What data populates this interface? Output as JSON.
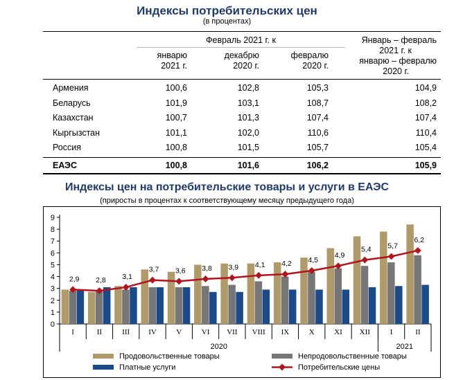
{
  "table": {
    "title": "Индексы потребительских цен",
    "subtitle": "(в процентах)",
    "group_header": "Февраль 2021 г. к",
    "columns": [
      {
        "line1": "январю",
        "line2": "2021 г."
      },
      {
        "line1": "декабрю",
        "line2": "2020 г."
      },
      {
        "line1": "февралю",
        "line2": "2020 г."
      }
    ],
    "last_column": [
      "Январь – февраль",
      "2021 г. к",
      "январю – февралю",
      "2020 г."
    ],
    "rows": [
      {
        "country": "Армения",
        "values": [
          "100,6",
          "102,8",
          "105,3",
          "104,9"
        ]
      },
      {
        "country": "Беларусь",
        "values": [
          "101,9",
          "103,1",
          "108,7",
          "108,2"
        ]
      },
      {
        "country": "Казахстан",
        "values": [
          "100,7",
          "101,3",
          "107,4",
          "107,4"
        ]
      },
      {
        "country": "Кыргызстан",
        "values": [
          "101,1",
          "102,0",
          "110,6",
          "110,4"
        ]
      },
      {
        "country": "Россия",
        "values": [
          "100,8",
          "101,5",
          "105,7",
          "105,4"
        ]
      }
    ],
    "total": {
      "country": "ЕАЭС",
      "values": [
        "100,8",
        "101,6",
        "106,2",
        "105,9"
      ]
    }
  },
  "chart_data": {
    "type": "bar",
    "title": "Индексы цен на потребительские товары и услуги в ЕАЭС",
    "subtitle": "(приросты в процентах к соответствующему месяцу предыдущего года)",
    "categories": [
      "I",
      "II",
      "III",
      "IV",
      "V",
      "VI",
      "VII",
      "VIII",
      "IX",
      "X",
      "XI",
      "XII",
      "I",
      "II"
    ],
    "year_groups": [
      {
        "label": "2020",
        "from": 0,
        "to": 11
      },
      {
        "label": "2021",
        "from": 12,
        "to": 13
      }
    ],
    "ylim": [
      0,
      9
    ],
    "yticks": [
      0,
      1,
      2,
      3,
      4,
      5,
      6,
      7,
      8,
      9
    ],
    "series": [
      {
        "name": "Продовольственные товары",
        "kind": "bar",
        "color": "#b09a6a",
        "values": [
          2.9,
          2.7,
          3.2,
          4.6,
          4.4,
          5.0,
          5.1,
          5.1,
          5.2,
          5.6,
          6.4,
          7.4,
          7.8,
          8.4
        ]
      },
      {
        "name": "Непродовольственные товары",
        "kind": "bar",
        "color": "#767676",
        "values": [
          2.8,
          2.8,
          2.9,
          3.1,
          3.1,
          3.2,
          3.3,
          3.6,
          4.0,
          4.4,
          4.7,
          4.9,
          5.2,
          5.8
        ]
      },
      {
        "name": "Платные услуги",
        "kind": "bar",
        "color": "#1a4a8a",
        "values": [
          2.9,
          3.1,
          3.1,
          3.1,
          3.1,
          2.7,
          2.7,
          2.9,
          2.9,
          2.9,
          2.9,
          3.1,
          3.2,
          3.3
        ]
      },
      {
        "name": "Потребительские цены",
        "kind": "line",
        "color": "#b0151e",
        "values": [
          2.9,
          2.8,
          3.1,
          3.7,
          3.6,
          3.8,
          3.9,
          4.1,
          4.2,
          4.5,
          4.9,
          5.4,
          5.7,
          6.2
        ],
        "labels": [
          "2,9",
          "2,8",
          "3,1",
          "3,7",
          "3,6",
          "3,8",
          "3,9",
          "4,1",
          "4,2",
          "4,5",
          "4,9",
          "5,4",
          "5,7",
          "6,2"
        ]
      }
    ]
  }
}
